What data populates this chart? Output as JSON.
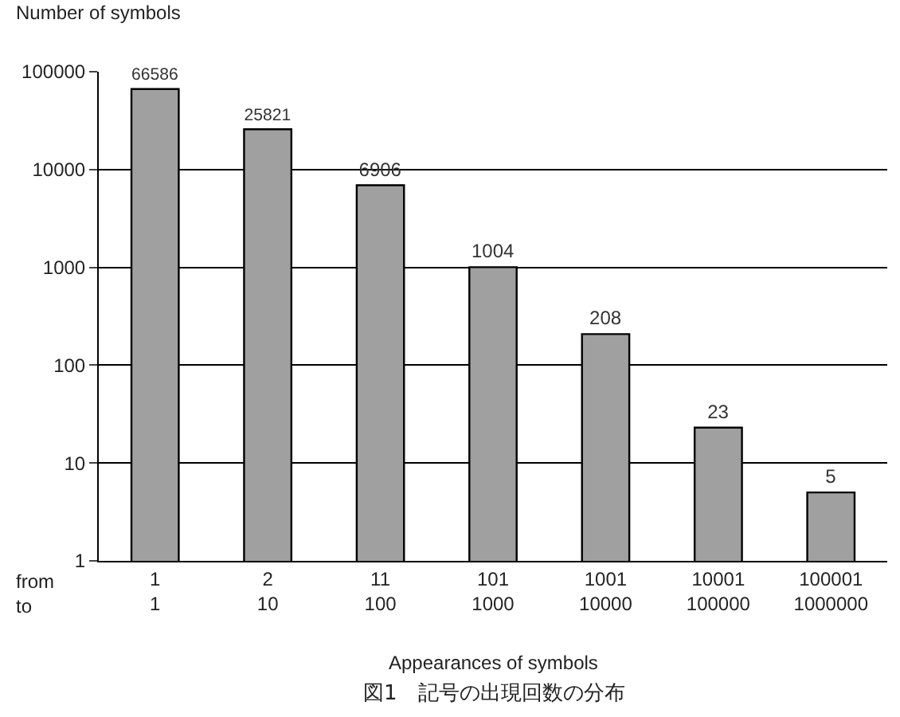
{
  "chart_data": {
    "type": "bar",
    "categories": [
      "1\n1",
      "2\n10",
      "11\n100",
      "101\n1000",
      "1001\n10000",
      "10001\n100000",
      "100001\n1000000"
    ],
    "values": [
      66586,
      25821,
      6906,
      1004,
      208,
      23,
      5
    ],
    "color": "#a0a0a0",
    "ylim": [
      1,
      100000
    ],
    "yticks": [
      1,
      10,
      100,
      1000,
      10000,
      100000
    ],
    "log": true,
    "grid": "y",
    "data_labels": true,
    "legend": false,
    "xlabel": "Appearances of symbols",
    "ylabel": "Number of symbols",
    "annotations": [
      "from\nto",
      "図1　記号の出現回数の分布"
    ]
  }
}
